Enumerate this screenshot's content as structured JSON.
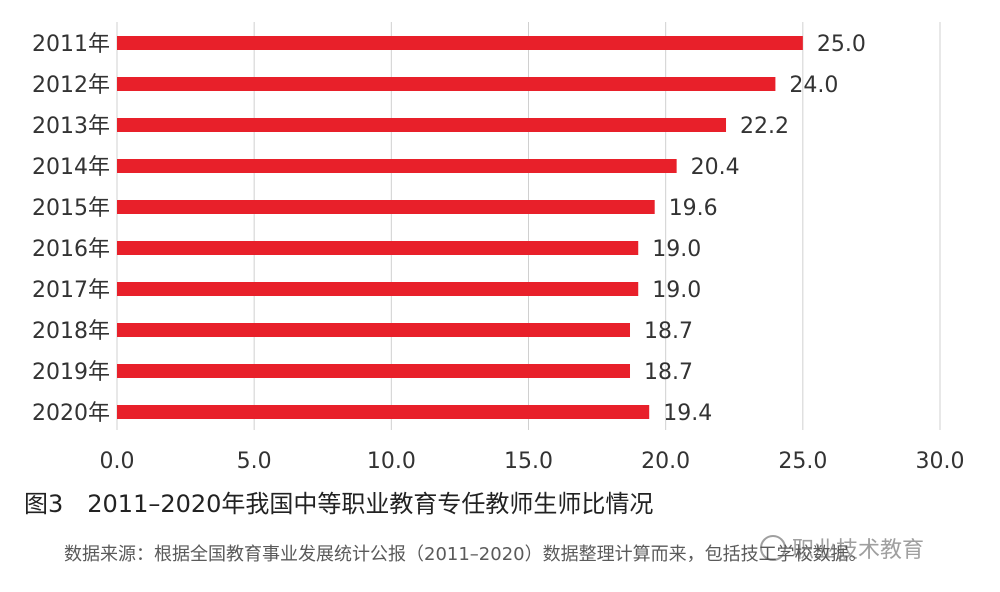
{
  "chart_data": {
    "type": "bar",
    "orientation": "horizontal",
    "categories": [
      "2011年",
      "2012年",
      "2013年",
      "2014年",
      "2015年",
      "2016年",
      "2017年",
      "2018年",
      "2019年",
      "2020年"
    ],
    "values": [
      25.0,
      24.0,
      22.2,
      20.4,
      19.6,
      19.0,
      19.0,
      18.7,
      18.7,
      19.4
    ],
    "value_labels": [
      "25.0",
      "24.0",
      "22.2",
      "20.4",
      "19.6",
      "19.0",
      "19.0",
      "18.7",
      "18.7",
      "19.4"
    ],
    "x_ticks": [
      "0.0",
      "5.0",
      "10.0",
      "15.0",
      "20.0",
      "25.0",
      "30.0"
    ],
    "xlim": [
      0,
      30
    ],
    "grid": "vertical",
    "bar_color": "#e8202a",
    "title": "图3　2011–2020年我国中等职业教育专任教师生师比情况",
    "source": "数据来源：根据全国教育事业发展统计公报（2011–2020）数据整理计算而来，包括技工学校数据。",
    "watermark": "职业技术教育"
  }
}
